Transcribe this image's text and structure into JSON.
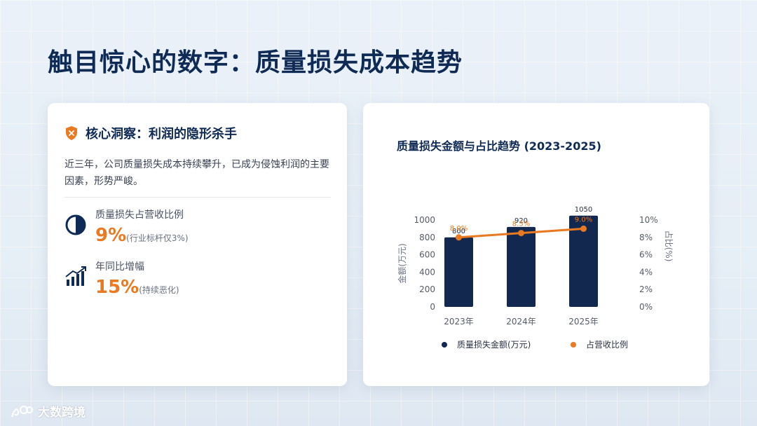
{
  "title": "触目惊心的数字：质量损失成本趋势",
  "insight": {
    "title": "核心洞察：利润的隐形杀手",
    "desc": "近三年，公司质量损失成本持续攀升，已成为侵蚀利润的主要因素，形势严峻。",
    "metrics": [
      {
        "label": "质量损失占营收比例",
        "value": "9%",
        "note": "(行业标杆仅3%)",
        "icon": "half-circle-icon"
      },
      {
        "label": "年同比增幅",
        "value": "15%",
        "note": "(持续恶化)",
        "icon": "bar-growth-icon"
      }
    ]
  },
  "colors": {
    "navy": "#0f2a55",
    "orange": "#ea7a22",
    "bar": "#13284f"
  },
  "chart_data": {
    "type": "bar",
    "title": "质量损失金额与占比趋势 (2023-2025)",
    "categories": [
      "2023年",
      "2024年",
      "2025年"
    ],
    "series": [
      {
        "name": "质量损失金额(万元)",
        "type": "bar",
        "axis": "left",
        "values": [
          800,
          920,
          1050
        ],
        "labels": [
          "800",
          "920",
          "1050"
        ]
      },
      {
        "name": "占营收比例",
        "type": "line",
        "axis": "right",
        "values": [
          8.0,
          8.5,
          9.0
        ],
        "labels": [
          "8.0%",
          "8.5%",
          "9.0%"
        ]
      }
    ],
    "ylabel": "金额(万元)",
    "ylabel_right": "占比(%)",
    "ylim": [
      0,
      1000
    ],
    "yticks": [
      "0",
      "200",
      "400",
      "600",
      "800",
      "1000"
    ],
    "ylim_right": [
      0,
      10
    ],
    "yticks_right": [
      "0%",
      "2%",
      "4%",
      "6%",
      "8%",
      "10%"
    ],
    "legend": "bottom",
    "grid": false
  },
  "footer": {
    "brand": "大数跨境"
  }
}
